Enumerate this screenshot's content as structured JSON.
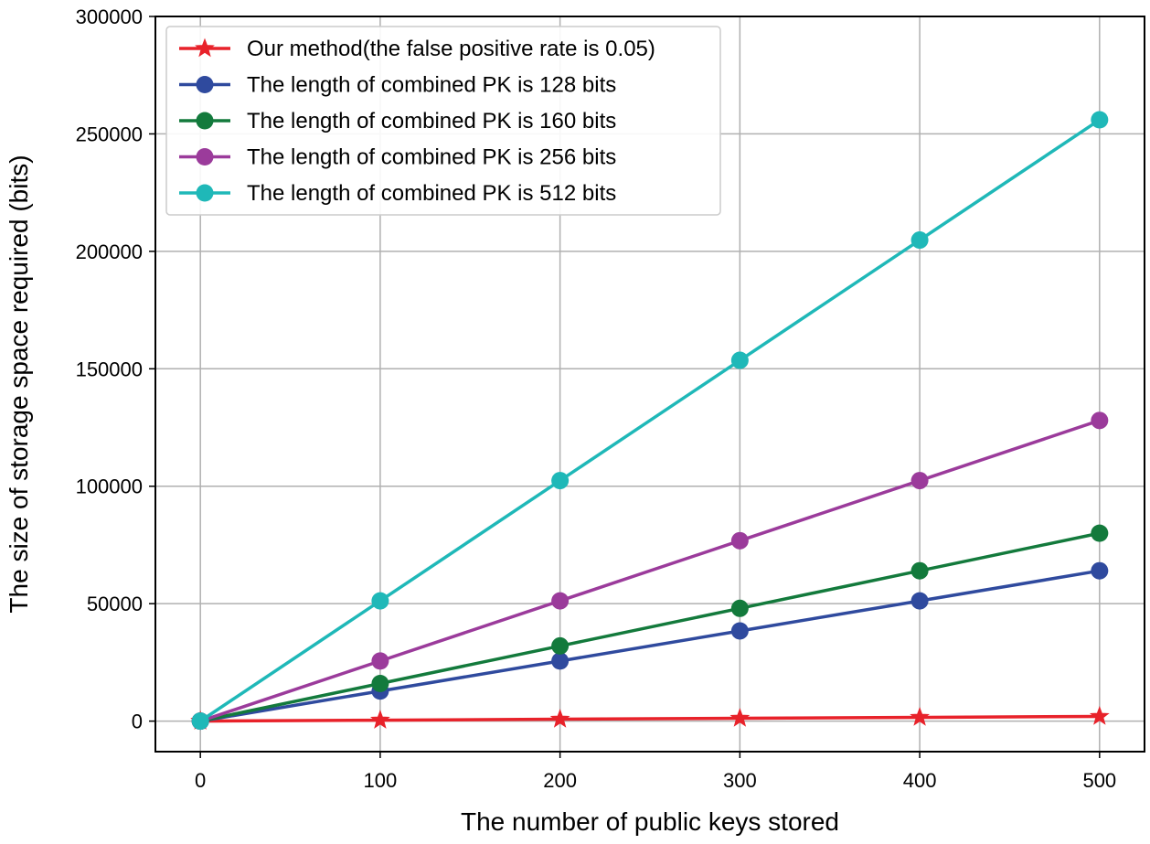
{
  "chart_data": {
    "type": "line",
    "title": "",
    "xlabel": "The number of public keys stored",
    "ylabel": "The size of storage space required (bits)",
    "xlim": [
      -25,
      525
    ],
    "ylim": [
      -13000,
      300000
    ],
    "x_ticks": [
      0,
      100,
      200,
      300,
      400,
      500
    ],
    "x_tick_labels": [
      "0",
      "100",
      "200",
      "300",
      "400",
      "500"
    ],
    "y_ticks": [
      0,
      50000,
      100000,
      150000,
      200000,
      250000,
      300000
    ],
    "y_tick_labels": [
      "0",
      "50000",
      "100000",
      "150000",
      "200000",
      "250000",
      "300000"
    ],
    "grid": true,
    "legend_position": "top-left",
    "x": [
      0,
      100,
      200,
      300,
      400,
      500
    ],
    "series": [
      {
        "name": "Our method(the false positive rate is 0.05)",
        "marker": "star",
        "color": "#e8222a",
        "values": [
          0,
          400,
          800,
          1200,
          1600,
          2000
        ]
      },
      {
        "name": "The length of combined PK is 128 bits",
        "marker": "circle",
        "color": "#2f4a9e",
        "values": [
          0,
          12800,
          25600,
          38400,
          51200,
          64000
        ]
      },
      {
        "name": "The length of combined PK is 160 bits",
        "marker": "circle",
        "color": "#137a3c",
        "values": [
          0,
          16000,
          32000,
          48000,
          64000,
          80000
        ]
      },
      {
        "name": "The length of combined PK is 256 bits",
        "marker": "circle",
        "color": "#9b3b9b",
        "values": [
          0,
          25600,
          51200,
          76800,
          102400,
          128000
        ]
      },
      {
        "name": "The length of combined PK is 512 bits",
        "marker": "circle",
        "color": "#1fb8b8",
        "values": [
          0,
          51200,
          102400,
          153600,
          204800,
          256000
        ]
      }
    ]
  }
}
